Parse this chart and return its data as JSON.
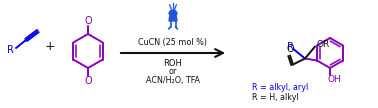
{
  "bg_color": "#ffffff",
  "blue_color": "#0000ee",
  "purple_color": "#8800bb",
  "black_color": "#111111",
  "led_blue": "#2255dd",
  "reaction_conditions_line1": "CuCN (25 mol %)",
  "reaction_conditions_line2": "ROH",
  "reaction_conditions_line3": "or",
  "reaction_conditions_line4": "ACN/H₂O, TFA",
  "label1": "R = alkyl, aryl",
  "label2": "R = H, alkyl",
  "figsize": [
    3.78,
    1.08
  ],
  "dpi": 100
}
